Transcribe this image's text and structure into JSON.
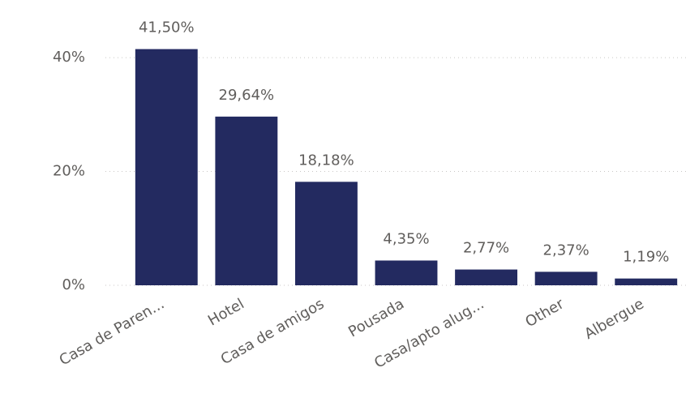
{
  "chart_data": {
    "type": "bar",
    "categories": [
      "Casa de Paren...",
      "Hotel",
      "Casa de amigos",
      "Pousada",
      "Casa/apto alug...",
      "Other",
      "Albergue"
    ],
    "values": [
      41.5,
      29.64,
      18.18,
      4.35,
      2.77,
      2.37,
      1.19
    ],
    "value_labels": [
      "41,50%",
      "29,64%",
      "18,18%",
      "4,35%",
      "2,77%",
      "2,37%",
      "1,19%"
    ],
    "color": "#232a60",
    "ylim": [
      0,
      45
    ],
    "yticks": [
      {
        "value": 0,
        "label": "0%"
      },
      {
        "value": 20,
        "label": "20%"
      },
      {
        "value": 40,
        "label": "40%"
      }
    ],
    "grid": true
  }
}
